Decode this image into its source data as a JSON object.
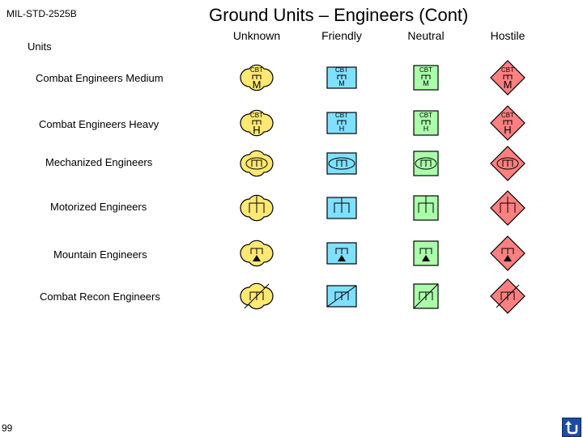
{
  "header": {
    "standard": "MIL-STD-2525B",
    "title": "Ground Units – Engineers (Cont)"
  },
  "columns": [
    "Unknown",
    "Friendly",
    "Neutral",
    "Hostile"
  ],
  "section_label": "Units",
  "rows": [
    {
      "label": "Combat Engineers Medium",
      "glyph": "cbt-m",
      "top_text": "CBT",
      "size_text": "M"
    },
    {
      "label": "Combat Engineers Heavy",
      "glyph": "cbt-h",
      "top_text": "CBT",
      "size_text": "H"
    },
    {
      "label": "Mechanized Engineers",
      "glyph": "mech"
    },
    {
      "label": "Motorized Engineers",
      "glyph": "motor"
    },
    {
      "label": "Mountain Engineers",
      "glyph": "mountain"
    },
    {
      "label": "Combat Recon Engineers",
      "glyph": "recon"
    }
  ],
  "affiliation_colors": {
    "unknown": "#ffe873",
    "friendly": "#80e0ff",
    "neutral": "#aaffaa",
    "hostile": "#ff8080"
  },
  "page_number": "99",
  "nav": {
    "back_icon": "return-arrow-icon"
  }
}
